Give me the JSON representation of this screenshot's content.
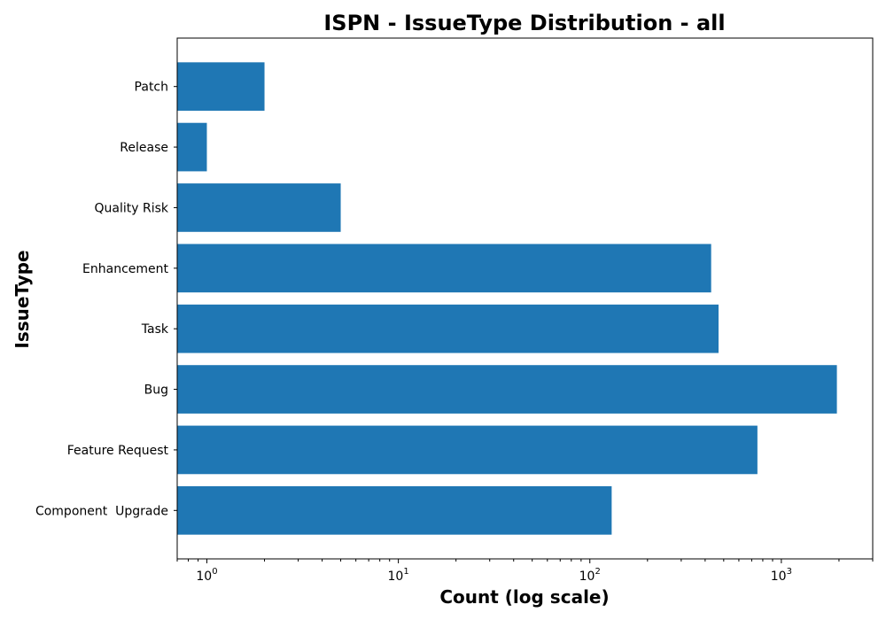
{
  "chart_data": {
    "type": "bar",
    "orientation": "horizontal",
    "title": "ISPN - IssueType Distribution - all",
    "xlabel": "Count (log scale)",
    "ylabel": "IssueType",
    "x_scale": "log",
    "xlim": [
      0.7,
      3000
    ],
    "x_ticks": [
      {
        "value": 1,
        "base": "10",
        "exp": "0"
      },
      {
        "value": 10,
        "base": "10",
        "exp": "1"
      },
      {
        "value": 100,
        "base": "10",
        "exp": "2"
      },
      {
        "value": 1000,
        "base": "10",
        "exp": "3"
      }
    ],
    "categories": [
      "Component  Upgrade",
      "Feature Request",
      "Bug",
      "Task",
      "Enhancement",
      "Quality Risk",
      "Release",
      "Patch"
    ],
    "values": [
      130,
      750,
      1950,
      470,
      430,
      5,
      1,
      2
    ],
    "bar_color": "#1f77b4",
    "grid": false,
    "legend": "none"
  }
}
